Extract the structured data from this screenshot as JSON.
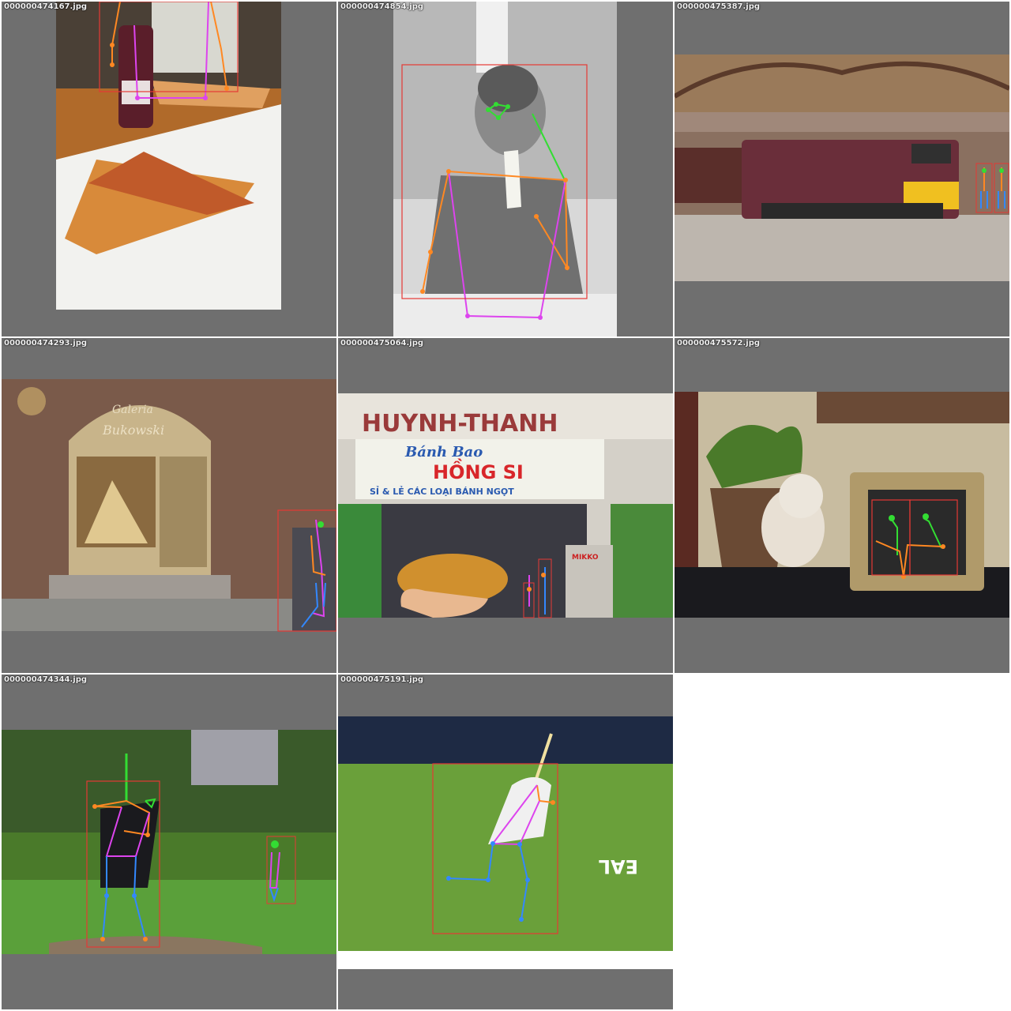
{
  "grid": {
    "background": "#ffffff",
    "tile_background": "#6f6f6f",
    "box_color": "#e53935",
    "limb_colors": {
      "head": "#33dd33",
      "arm": "#ff8822",
      "torso": "#dd44ee",
      "leg": "#3388ff"
    }
  },
  "tiles": [
    {
      "filename": "000000474167.jpg",
      "scene": "pizza slices and a soda bottle on a table"
    },
    {
      "filename": "000000474854.jpg",
      "scene": "grayscale photo of a man eating a banana"
    },
    {
      "filename": "000000475387.jpg",
      "scene": "maroon diesel locomotive in a train station"
    },
    {
      "filename": "000000474293.jpg",
      "scene": "brick building with an arched bakery window, sign Galeria Bukowski"
    },
    {
      "filename": "000000475064.jpg",
      "scene": "hand holding a pastry in front of a bakery shop"
    },
    {
      "filename": "000000475572.jpg",
      "scene": "plant, teddy bear and framed photo on a shelf"
    },
    {
      "filename": "000000474344.jpg",
      "scene": "boy batting in a park with another child behind"
    },
    {
      "filename": "000000475191.jpg",
      "scene": "tennis player running on a green court"
    }
  ],
  "signs": {
    "galeria": "Galeria",
    "bukowski": "Bukowski",
    "huynh_thanh": "HUYNH-THANH",
    "banh_bao": "Bánh Bao",
    "hong_si": "HỒNG SI",
    "si_le": "SỈ & LẺ CÁC LOẠI BÁNH NGỌT",
    "mikko": "MIKKO",
    "court_text": "EAL"
  }
}
